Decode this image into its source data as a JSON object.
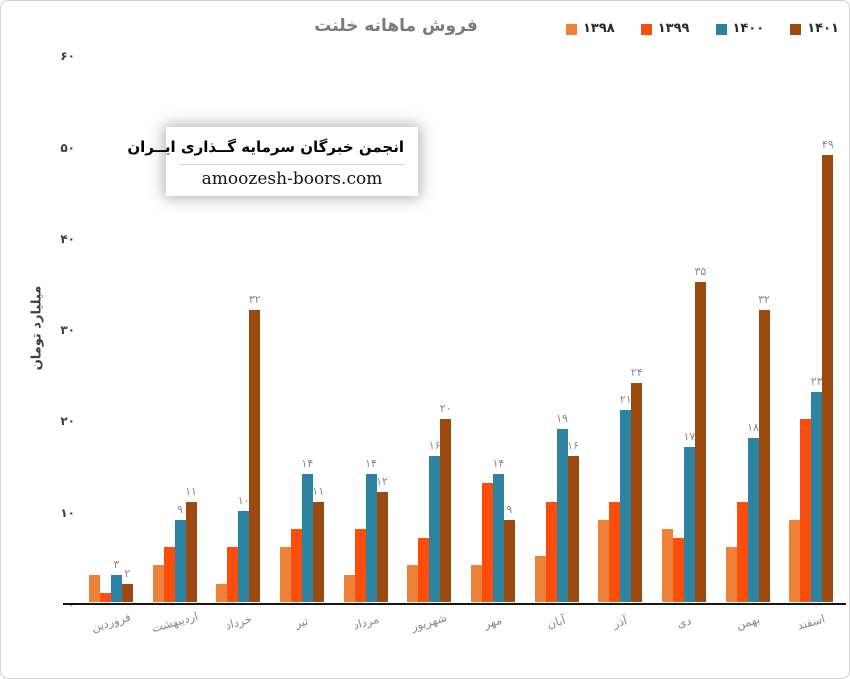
{
  "title": "فروش ماهانه خلنت",
  "watermark": {
    "line1": "انجمن خبرگان سرمایه گــذاری ایــران",
    "line2": "amoozesh-boors.com"
  },
  "legend": [
    {
      "label": "۱۳۹۸",
      "color": "#EE8239"
    },
    {
      "label": "۱۳۹۹",
      "color": "#FB4E0C"
    },
    {
      "label": "۱۴۰۰",
      "color": "#2C84A2"
    },
    {
      "label": "۱۴۰۱",
      "color": "#9C4A10"
    }
  ],
  "y_axis": {
    "label": "میلیارد تومان",
    "tick_labels": [
      "۰",
      "۱۰",
      "۲۰",
      "۳۰",
      "۴۰",
      "۵۰",
      "۶۰"
    ],
    "tick_values": [
      0,
      10,
      20,
      30,
      40,
      50,
      60
    ]
  },
  "chart_data": {
    "type": "bar",
    "title": "فروش ماهانه خلنت",
    "ylabel": "میلیارد تومان",
    "ylim": [
      0,
      60
    ],
    "grid": false,
    "legend_position": "top-right",
    "categories": [
      "فروردین",
      "اردیبهشت",
      "خرداد",
      "تیر",
      "مرداد",
      "شهریور",
      "مهر",
      "آبان",
      "آذر",
      "دی",
      "بهمن",
      "اسفند"
    ],
    "series": [
      {
        "name": "۱۳۹۸",
        "color": "#EE8239",
        "show_labels": false,
        "values": [
          3,
          4,
          2,
          6,
          3,
          4,
          4,
          5,
          9,
          8,
          6,
          9
        ]
      },
      {
        "name": "۱۳۹۹",
        "color": "#FB4E0C",
        "show_labels": false,
        "values": [
          1,
          6,
          6,
          8,
          8,
          7,
          13,
          11,
          11,
          7,
          11,
          20
        ]
      },
      {
        "name": "۱۴۰۰",
        "color": "#2C84A2",
        "show_labels": true,
        "values": [
          3,
          9,
          10,
          14,
          14,
          16,
          14,
          19,
          21,
          17,
          18,
          23
        ]
      },
      {
        "name": "۱۴۰۱",
        "color": "#9C4A10",
        "show_labels": true,
        "values": [
          2,
          11,
          32,
          11,
          12,
          20,
          9,
          16,
          24,
          35,
          32,
          49
        ]
      }
    ]
  }
}
